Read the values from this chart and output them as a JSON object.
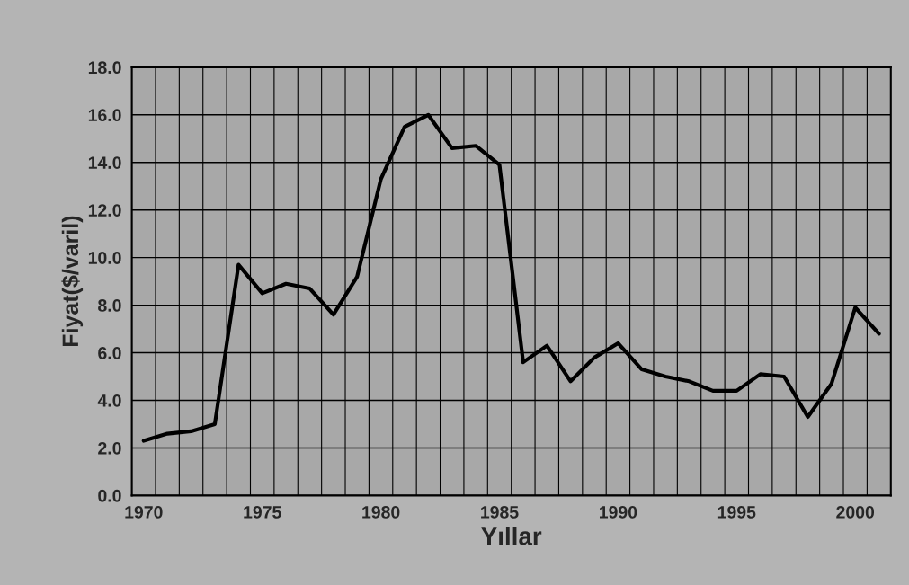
{
  "chart_data": {
    "type": "line",
    "xlabel": "Yıllar",
    "ylabel": "Fiyat($/varil)",
    "categories": [
      "1970",
      null,
      null,
      null,
      null,
      "1975",
      null,
      null,
      null,
      null,
      "1980",
      null,
      null,
      null,
      null,
      "1985",
      null,
      null,
      null,
      null,
      "1990",
      null,
      null,
      null,
      null,
      "1995",
      null,
      null,
      null,
      null,
      "2000",
      null
    ],
    "series": [
      {
        "color": "#000000",
        "values": [
          2.3,
          2.6,
          2.7,
          3.0,
          9.7,
          8.5,
          8.9,
          8.7,
          7.6,
          9.2,
          13.3,
          15.5,
          16.0,
          14.6,
          14.7,
          13.9,
          5.6,
          6.3,
          4.8,
          5.8,
          6.4,
          5.3,
          5.0,
          4.8,
          4.4,
          4.4,
          5.1,
          5.0,
          3.3,
          4.7,
          7.9,
          6.8
        ]
      }
    ],
    "ylim": [
      0,
      18
    ],
    "yticks": [
      {
        "value": 0,
        "label": "0.0"
      },
      {
        "value": 2,
        "label": "2.0"
      },
      {
        "value": 4,
        "label": "4.0"
      },
      {
        "value": 6,
        "label": "6.0"
      },
      {
        "value": 8,
        "label": "8.0"
      },
      {
        "value": 10,
        "label": "10.0"
      },
      {
        "value": 12,
        "label": "12.0"
      },
      {
        "value": 14,
        "label": "14.0"
      },
      {
        "value": 16,
        "label": "16.0"
      },
      {
        "value": 18,
        "label": "18.0"
      }
    ],
    "grid": true,
    "marker": "none",
    "line_style": "solid"
  }
}
